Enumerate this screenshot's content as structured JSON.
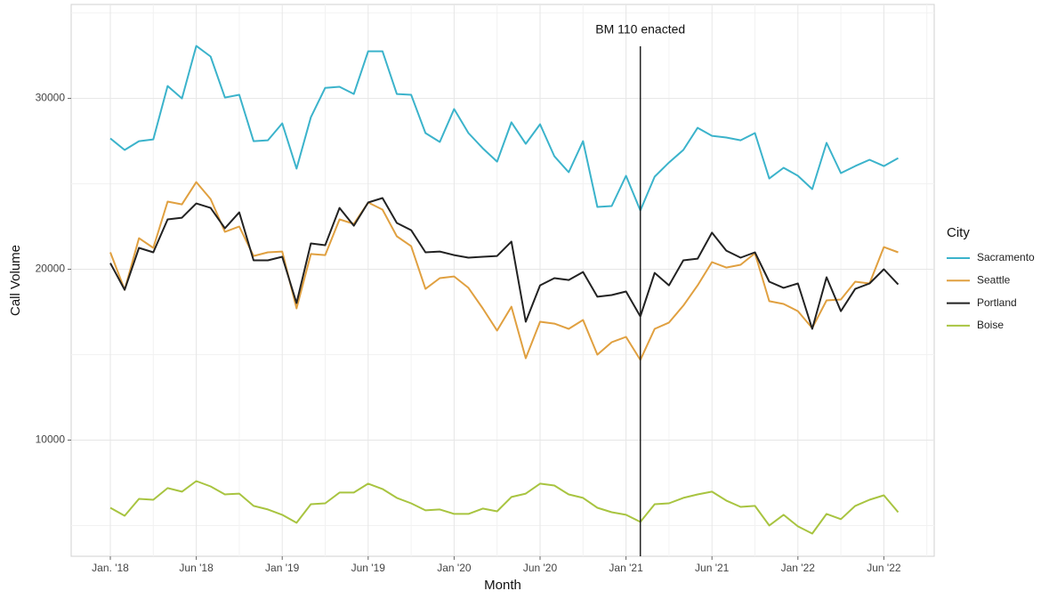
{
  "chart_data": {
    "type": "line",
    "x_label": "Month",
    "y_label": "Call Volume",
    "categories": [
      "Jan. '18",
      null,
      null,
      null,
      null,
      null,
      "Jun '18",
      null,
      null,
      null,
      null,
      null,
      "Jan '19",
      null,
      null,
      null,
      null,
      null,
      "Jun '19",
      null,
      null,
      null,
      null,
      null,
      "Jan '20",
      null,
      null,
      null,
      null,
      null,
      "Jun '20",
      null,
      null,
      null,
      null,
      null,
      "Jan '21",
      null,
      null,
      null,
      null,
      null,
      "Jun '21",
      null,
      null,
      null,
      null,
      null,
      "Jan '22",
      null,
      null,
      null,
      null,
      null,
      "Jun '22",
      null
    ],
    "ylim": [
      3200,
      35500
    ],
    "yticks": [
      10000,
      20000,
      30000
    ],
    "grid": true,
    "legend_title": "City",
    "legend_position": "right",
    "annotation": {
      "text": "BM 110 enacted",
      "category_index": 37
    },
    "series": [
      {
        "name": "Sacramento",
        "color": "#3bb3cb",
        "values": [
          27660,
          26980,
          27500,
          27600,
          30730,
          30000,
          33070,
          32450,
          30050,
          30210,
          27500,
          27550,
          28540,
          25890,
          28900,
          30620,
          30680,
          30260,
          32760,
          32760,
          30260,
          30210,
          27970,
          27450,
          29380,
          27970,
          27080,
          26300,
          28600,
          27340,
          28490,
          26610,
          25680,
          27500,
          23650,
          23700,
          25470,
          23440,
          25420,
          26250,
          26980,
          28280,
          27810,
          27710,
          27550,
          27970,
          25310,
          25940,
          25470,
          24690,
          27400,
          25630,
          26040,
          26410,
          26040,
          26510
        ]
      },
      {
        "name": "Seattle",
        "color": "#e0a040",
        "values": [
          20990,
          18800,
          21820,
          21250,
          23960,
          23800,
          25100,
          24110,
          22190,
          22500,
          20780,
          20990,
          21040,
          17710,
          20890,
          20830,
          22920,
          22660,
          23910,
          23490,
          21930,
          21350,
          18850,
          19480,
          19580,
          18910,
          17710,
          16410,
          17810,
          14790,
          16930,
          16820,
          16510,
          17030,
          15000,
          15730,
          16040,
          14690,
          16510,
          16880,
          17870,
          19060,
          20420,
          20100,
          20260,
          20940,
          18130,
          17970,
          17550,
          16560,
          18180,
          18230,
          19270,
          19170,
          21300,
          20990
        ]
      },
      {
        "name": "Portland",
        "color": "#222222",
        "values": [
          20360,
          18800,
          21250,
          20990,
          22920,
          23020,
          23850,
          23590,
          22400,
          23330,
          20520,
          20520,
          20730,
          18020,
          21510,
          21410,
          23590,
          22550,
          23910,
          24170,
          22710,
          22290,
          20990,
          21040,
          20830,
          20680,
          20730,
          20780,
          21620,
          16930,
          19060,
          19480,
          19370,
          19840,
          18390,
          18490,
          18700,
          17240,
          19790,
          19060,
          20520,
          20620,
          22140,
          21090,
          20680,
          20990,
          19270,
          18910,
          19170,
          16510,
          19530,
          17550,
          18850,
          19170,
          20000,
          19110
        ]
      },
      {
        "name": "Boise",
        "color": "#a8c440",
        "values": [
          6040,
          5570,
          6560,
          6510,
          7190,
          6980,
          7600,
          7290,
          6820,
          6870,
          6150,
          5940,
          5630,
          5160,
          6250,
          6300,
          6930,
          6930,
          7450,
          7140,
          6620,
          6300,
          5890,
          5940,
          5680,
          5680,
          5990,
          5830,
          6670,
          6870,
          7450,
          7340,
          6820,
          6620,
          6040,
          5780,
          5630,
          5210,
          6250,
          6300,
          6620,
          6820,
          6980,
          6460,
          6090,
          6150,
          5000,
          5630,
          4950,
          4530,
          5680,
          5370,
          6150,
          6510,
          6770,
          5780
        ]
      }
    ]
  }
}
